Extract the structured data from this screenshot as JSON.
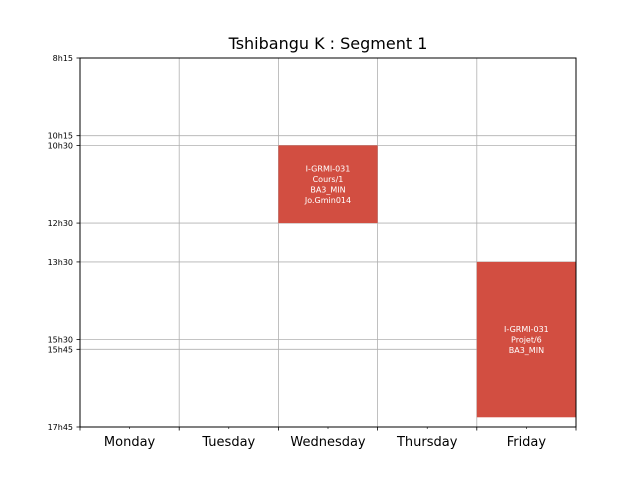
{
  "chart_data": {
    "type": "table",
    "title": "Tshibangu K : Segment 1",
    "days": [
      "Monday",
      "Tuesday",
      "Wednesday",
      "Thursday",
      "Friday"
    ],
    "time_ticks": [
      "8h15",
      "10h15",
      "10h30",
      "12h30",
      "13h30",
      "15h30",
      "15h45",
      "17h45"
    ],
    "time_range": [
      "8h15",
      "17h45"
    ],
    "grid": true,
    "events": [
      {
        "day": "Wednesday",
        "start": "10h30",
        "end": "12h30",
        "lines": [
          "I-GRMI-031",
          "Cours/1",
          "BA3_MIN",
          "Jo.Gmin014"
        ],
        "color": "#d24e41"
      },
      {
        "day": "Friday",
        "start": "13h30",
        "end": "17h30",
        "lines": [
          "I-GRMI-031",
          "Projet/6",
          "BA3_MIN"
        ],
        "color": "#d24e41"
      }
    ]
  }
}
